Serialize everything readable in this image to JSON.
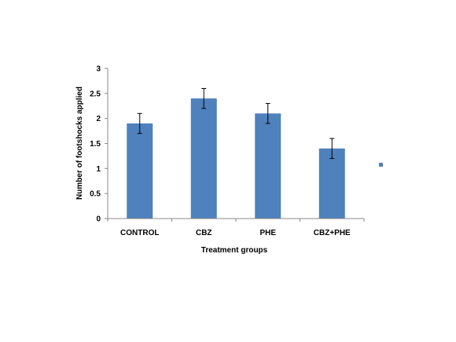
{
  "chart_data": {
    "type": "bar",
    "categories": [
      "CONTROL",
      "CBZ",
      "PHE",
      "CBZ+PHE"
    ],
    "series": [
      {
        "values": [
          1.9,
          2.4,
          2.1,
          1.4
        ],
        "error": [
          0.2,
          0.2,
          0.2,
          0.2
        ],
        "color": "#4f81bd"
      }
    ],
    "xlabel": "Treatment groups",
    "ylabel": "Number of footshocks applied",
    "ylim": [
      0,
      3
    ],
    "yticks": [
      0,
      0.5,
      1,
      1.5,
      2,
      2.5,
      3
    ],
    "ytick_labels": [
      "0",
      "0.5",
      "1",
      "1.5",
      "2",
      "2.5",
      "3"
    ],
    "grid": false,
    "legend": {
      "placement": "right",
      "marker_color": "#4f81bd"
    },
    "colors": {
      "bar": "#4f81bd",
      "axis": "#888888",
      "error_bar": "#000000"
    }
  }
}
